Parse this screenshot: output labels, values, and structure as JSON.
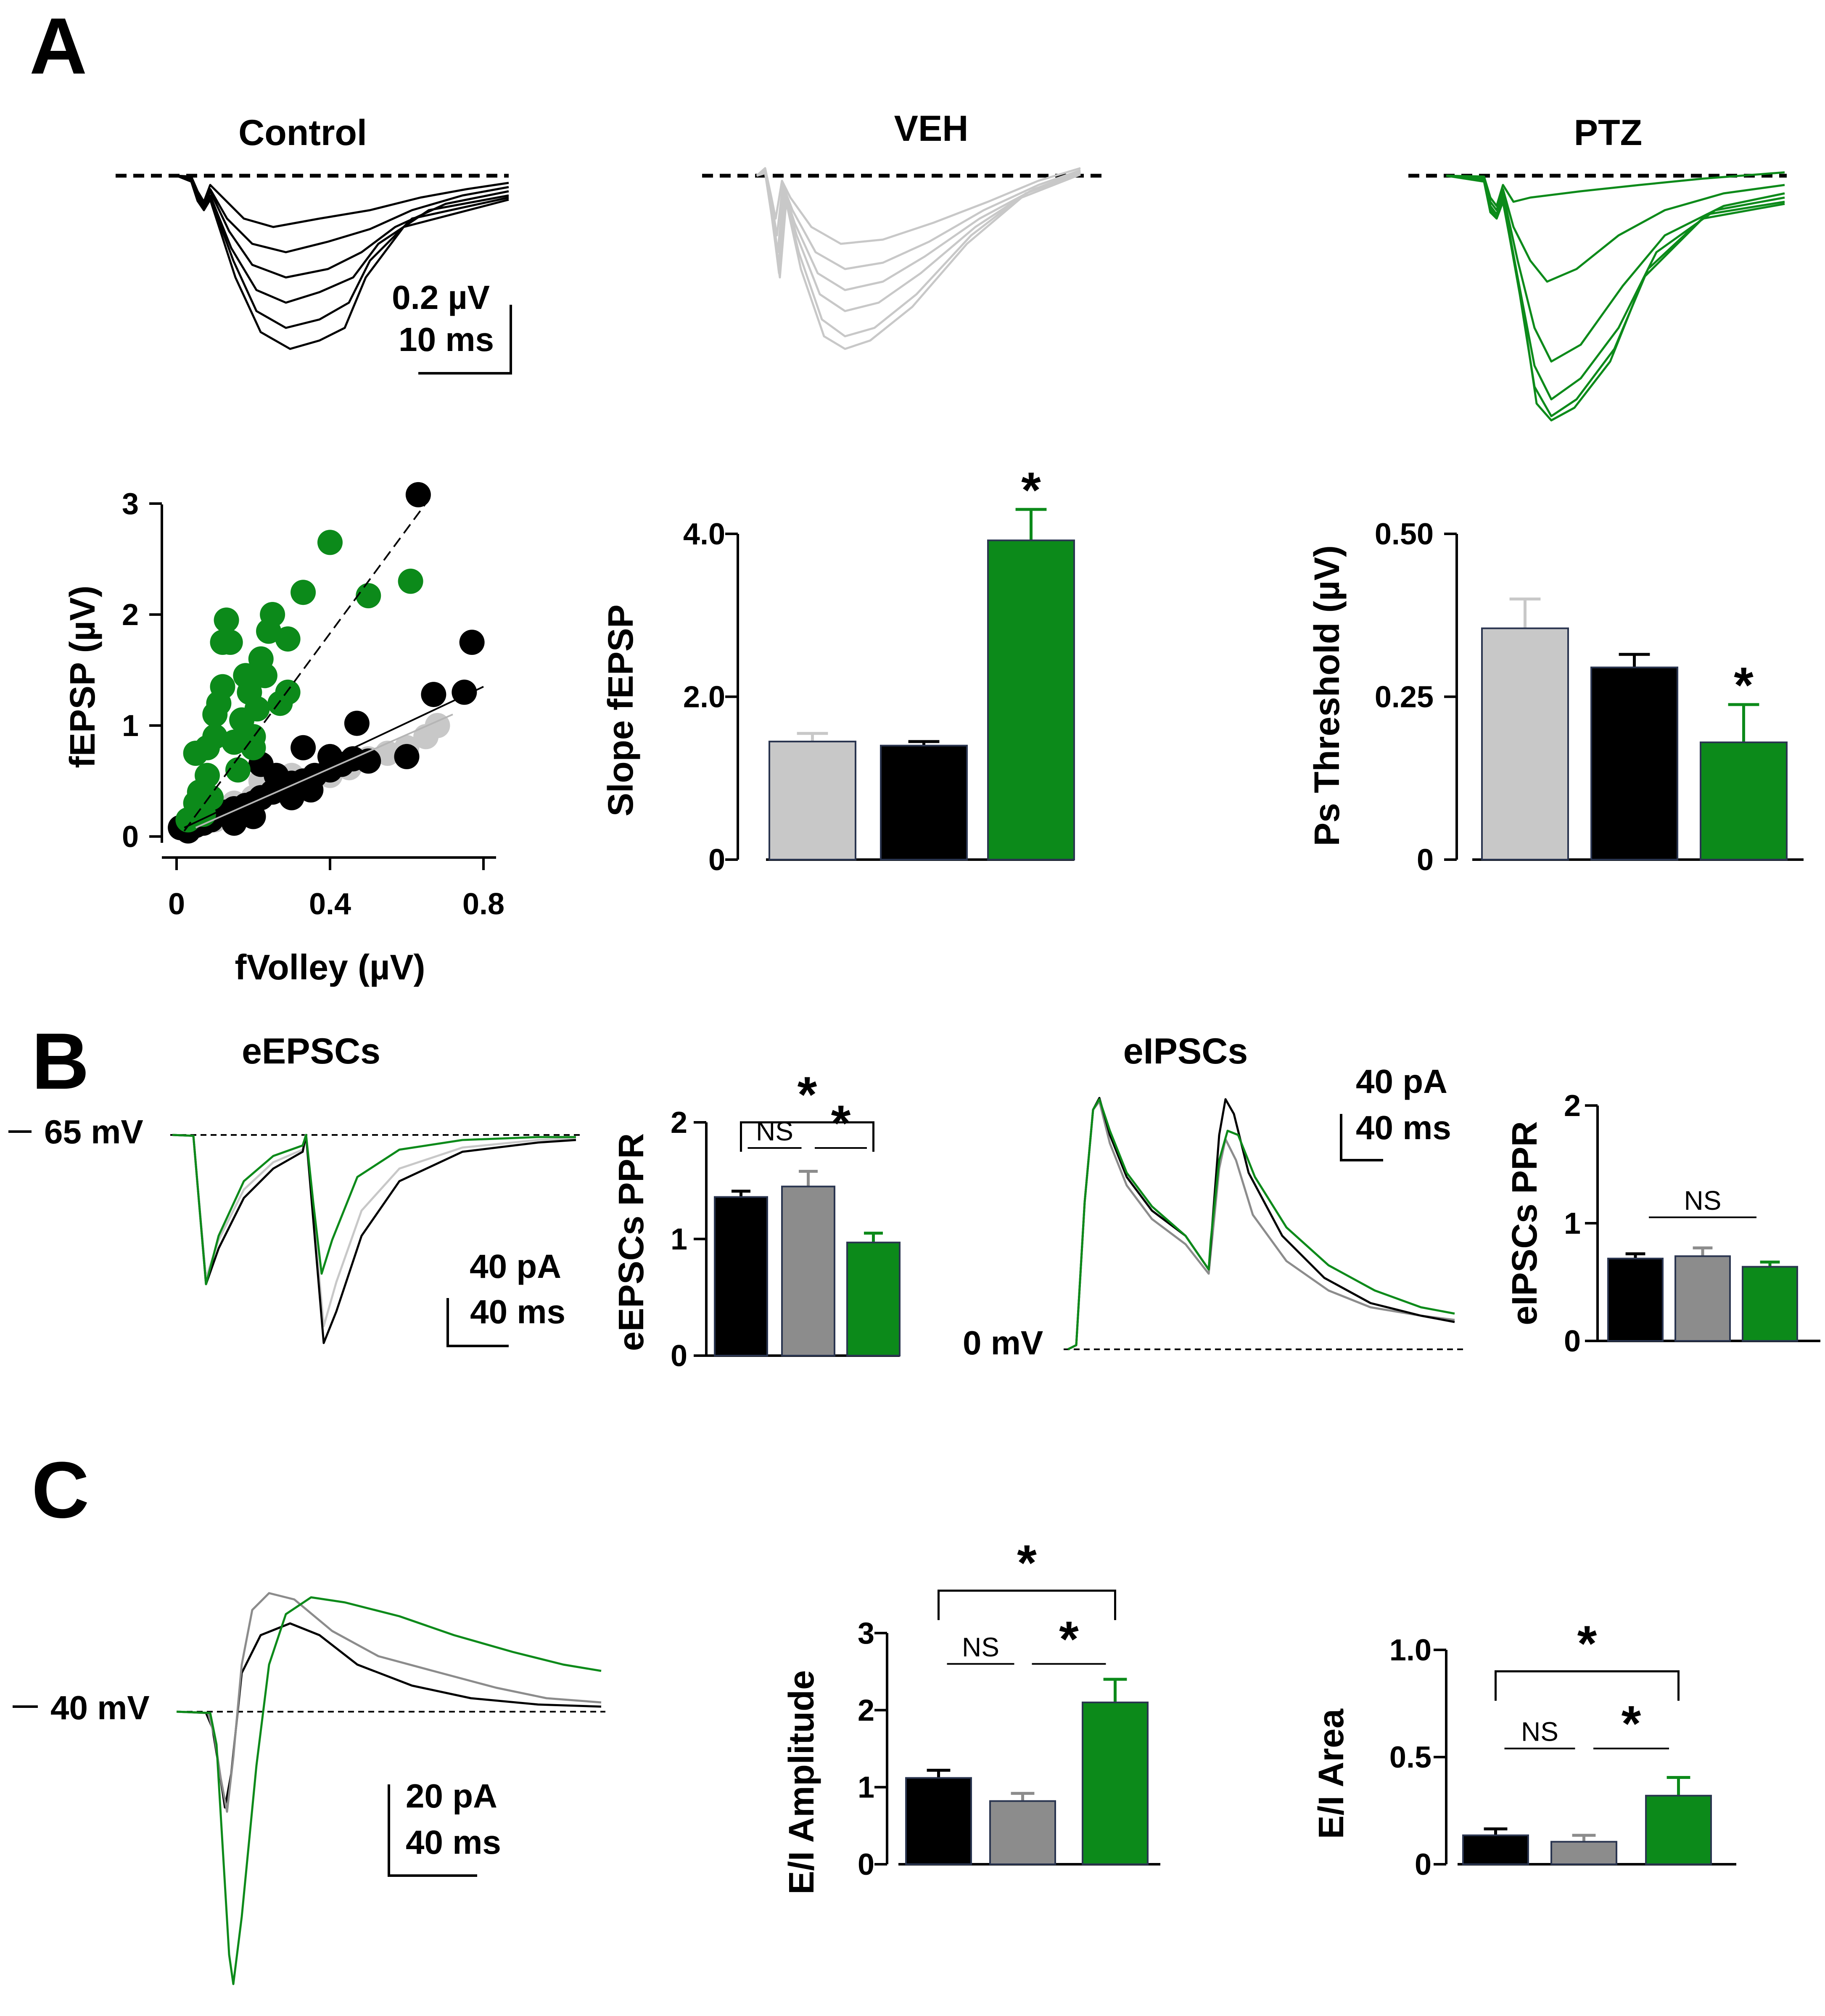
{
  "colors": {
    "control": "#000000",
    "veh": "#c8c8c8",
    "veh_dark": "#8c8c8c",
    "ptz": "#0c8a1a"
  },
  "panels": {
    "a": "A",
    "b": "B",
    "c": "C"
  },
  "traces_a": {
    "control_title": "Control",
    "veh_title": "VEH",
    "ptz_title": "PTZ",
    "scale_y": "0.2 µV",
    "scale_x": "10 ms"
  },
  "traces_b": {
    "eepsc_title": "eEPSCs",
    "eipsc_title": "eIPSCs",
    "hold_exc": "65 mV",
    "hold_inh": "0 mV",
    "exc_scale_y": "40 pA",
    "exc_scale_x": "40 ms",
    "inh_scale_y": "40 pA",
    "inh_scale_x": "40 ms"
  },
  "traces_c": {
    "hold": "40 mV",
    "scale_y": "20 pA",
    "scale_x": "40 ms"
  },
  "chart_data": [
    {
      "id": "io_scatter",
      "type": "scatter",
      "xlabel": "fVolley (µV)",
      "ylabel": "fEPSP (µV)",
      "xlim": [
        0,
        0.8
      ],
      "ylim": [
        0,
        3
      ],
      "xticks": [
        "0",
        "0.4",
        "0.8"
      ],
      "yticks": [
        "0",
        "1",
        "2",
        "3"
      ],
      "series": [
        {
          "name": "VEH",
          "color": "#c8c8c8",
          "points": [
            [
              0.04,
              0.1
            ],
            [
              0.08,
              0.2
            ],
            [
              0.12,
              0.22
            ],
            [
              0.15,
              0.3
            ],
            [
              0.2,
              0.35
            ],
            [
              0.24,
              0.4
            ],
            [
              0.28,
              0.45
            ],
            [
              0.3,
              0.55
            ],
            [
              0.35,
              0.5
            ],
            [
              0.4,
              0.55
            ],
            [
              0.45,
              0.62
            ],
            [
              0.5,
              0.7
            ],
            [
              0.55,
              0.75
            ],
            [
              0.6,
              0.8
            ],
            [
              0.65,
              0.9
            ],
            [
              0.68,
              1.0
            ],
            [
              0.22,
              0.5
            ],
            [
              0.18,
              0.28
            ],
            [
              0.32,
              0.42
            ],
            [
              0.1,
              0.15
            ]
          ]
        },
        {
          "name": "Control",
          "color": "#000000",
          "points": [
            [
              0.01,
              0.08
            ],
            [
              0.03,
              0.05
            ],
            [
              0.05,
              0.1
            ],
            [
              0.07,
              0.12
            ],
            [
              0.09,
              0.15
            ],
            [
              0.11,
              0.2
            ],
            [
              0.13,
              0.22
            ],
            [
              0.15,
              0.25
            ],
            [
              0.18,
              0.28
            ],
            [
              0.2,
              0.3
            ],
            [
              0.22,
              0.35
            ],
            [
              0.25,
              0.4
            ],
            [
              0.27,
              0.42
            ],
            [
              0.3,
              0.48
            ],
            [
              0.33,
              0.5
            ],
            [
              0.36,
              0.55
            ],
            [
              0.4,
              0.6
            ],
            [
              0.43,
              0.65
            ],
            [
              0.46,
              0.7
            ],
            [
              0.5,
              0.68
            ],
            [
              0.22,
              0.65
            ],
            [
              0.26,
              0.55
            ],
            [
              0.33,
              0.8
            ],
            [
              0.47,
              1.02
            ],
            [
              0.6,
              0.72
            ],
            [
              0.67,
              1.28
            ],
            [
              0.75,
              1.3
            ],
            [
              0.77,
              1.75
            ],
            [
              0.63,
              3.08
            ],
            [
              0.4,
              0.72
            ],
            [
              0.3,
              0.35
            ],
            [
              0.2,
              0.18
            ],
            [
              0.35,
              0.42
            ],
            [
              0.15,
              0.12
            ]
          ]
        },
        {
          "name": "PTZ",
          "color": "#0c8a1a",
          "points": [
            [
              0.03,
              0.15
            ],
            [
              0.05,
              0.3
            ],
            [
              0.05,
              0.75
            ],
            [
              0.06,
              0.4
            ],
            [
              0.08,
              0.55
            ],
            [
              0.08,
              0.8
            ],
            [
              0.09,
              0.35
            ],
            [
              0.1,
              1.1
            ],
            [
              0.1,
              0.9
            ],
            [
              0.11,
              1.2
            ],
            [
              0.12,
              1.35
            ],
            [
              0.12,
              1.75
            ],
            [
              0.13,
              1.95
            ],
            [
              0.14,
              1.75
            ],
            [
              0.15,
              0.85
            ],
            [
              0.16,
              0.6
            ],
            [
              0.17,
              1.05
            ],
            [
              0.18,
              1.45
            ],
            [
              0.19,
              1.3
            ],
            [
              0.2,
              0.9
            ],
            [
              0.21,
              1.15
            ],
            [
              0.22,
              1.6
            ],
            [
              0.23,
              1.45
            ],
            [
              0.24,
              1.85
            ],
            [
              0.25,
              2.0
            ],
            [
              0.27,
              1.2
            ],
            [
              0.29,
              1.3
            ],
            [
              0.29,
              1.78
            ],
            [
              0.33,
              2.2
            ],
            [
              0.4,
              2.65
            ],
            [
              0.5,
              2.17
            ],
            [
              0.61,
              2.3
            ],
            [
              0.2,
              0.8
            ],
            [
              0.07,
              0.2
            ]
          ]
        }
      ],
      "fits": [
        {
          "name": "PTZ fit",
          "color": "#000000",
          "style": "dashed",
          "x": [
            0.02,
            0.66
          ],
          "y": [
            0.05,
            3.05
          ]
        },
        {
          "name": "Control fit",
          "color": "#000000",
          "style": "solid",
          "x": [
            0.02,
            0.8
          ],
          "y": [
            0.08,
            1.35
          ]
        },
        {
          "name": "VEH fit",
          "color": "#b5b5b5",
          "style": "solid",
          "x": [
            0.05,
            0.72
          ],
          "y": [
            0.08,
            1.1
          ]
        }
      ]
    },
    {
      "id": "slope_bar",
      "type": "bar",
      "ylabel": "Slope fEPSP",
      "ylim": [
        0,
        4.0
      ],
      "yticks": [
        "0",
        "2.0",
        "4.0"
      ],
      "categories": [
        "VEH",
        "Control",
        "PTZ"
      ],
      "values": [
        1.45,
        1.4,
        3.92
      ],
      "errors": [
        0.1,
        0.05,
        0.38
      ],
      "colors": [
        "#c8c8c8",
        "#000000",
        "#0c8a1a"
      ],
      "significance": [
        {
          "bar": 2,
          "label": "*"
        }
      ]
    },
    {
      "id": "ps_bar",
      "type": "bar",
      "ylabel": "Ps Threshold (µV)",
      "ylim": [
        0,
        0.5
      ],
      "yticks": [
        "0",
        "0.25",
        "0.50"
      ],
      "categories": [
        "VEH",
        "Control",
        "PTZ"
      ],
      "values": [
        0.355,
        0.295,
        0.18
      ],
      "errors": [
        0.045,
        0.02,
        0.058
      ],
      "colors": [
        "#c8c8c8",
        "#000000",
        "#0c8a1a"
      ],
      "significance": [
        {
          "bar": 2,
          "label": "*"
        }
      ]
    },
    {
      "id": "eepsc_ppr",
      "type": "bar",
      "ylabel": "eEPSCs PPR",
      "ylim": [
        0,
        2
      ],
      "yticks": [
        "0",
        "1",
        "2"
      ],
      "categories": [
        "Control",
        "VEH",
        "PTZ"
      ],
      "values": [
        1.36,
        1.45,
        0.97
      ],
      "errors": [
        0.05,
        0.13,
        0.08
      ],
      "colors": [
        "#000000",
        "#8c8c8c",
        "#0c8a1a"
      ],
      "brackets": [
        {
          "from": 0,
          "to": 2,
          "label": "*",
          "level": 2.0,
          "type": "bracket"
        },
        {
          "from": 0,
          "to": 1,
          "label": "NS",
          "level": 1.78,
          "type": "line"
        },
        {
          "from": 1,
          "to": 2,
          "label": "*",
          "level": 1.78,
          "type": "line"
        }
      ]
    },
    {
      "id": "eipsc_ppr",
      "type": "bar",
      "ylabel": "eIPSCs PPR",
      "ylim": [
        0,
        2
      ],
      "yticks": [
        "0",
        "1",
        "2"
      ],
      "categories": [
        "Control",
        "VEH",
        "PTZ"
      ],
      "values": [
        0.7,
        0.72,
        0.63
      ],
      "errors": [
        0.04,
        0.07,
        0.04
      ],
      "colors": [
        "#000000",
        "#8c8c8c",
        "#0c8a1a"
      ],
      "brackets": [
        {
          "from": 0,
          "to": 2,
          "label": "NS",
          "level": 1.05,
          "type": "line"
        }
      ]
    },
    {
      "id": "ei_amp",
      "type": "bar",
      "ylabel": "E/I Amplitude",
      "ylim": [
        0,
        3
      ],
      "yticks": [
        "0",
        "1",
        "2",
        "3"
      ],
      "categories": [
        "Control",
        "VEH",
        "PTZ"
      ],
      "values": [
        1.12,
        0.82,
        2.1
      ],
      "errors": [
        0.1,
        0.1,
        0.3
      ],
      "colors": [
        "#000000",
        "#8c8c8c",
        "#0c8a1a"
      ],
      "brackets": [
        {
          "from": 0,
          "to": 2,
          "label": "*",
          "level": 3.55,
          "type": "bracket"
        },
        {
          "from": 0,
          "to": 1,
          "label": "NS",
          "level": 2.6,
          "type": "line"
        },
        {
          "from": 1,
          "to": 2,
          "label": "*",
          "level": 2.6,
          "type": "line"
        }
      ]
    },
    {
      "id": "ei_area",
      "type": "bar",
      "ylabel": "E/I Area",
      "ylim": [
        0,
        1.0
      ],
      "yticks": [
        "0",
        "0.5",
        "1.0"
      ],
      "categories": [
        "Control",
        "VEH",
        "PTZ"
      ],
      "values": [
        0.135,
        0.105,
        0.32
      ],
      "errors": [
        0.03,
        0.03,
        0.085
      ],
      "colors": [
        "#000000",
        "#8c8c8c",
        "#0c8a1a"
      ],
      "brackets": [
        {
          "from": 0,
          "to": 2,
          "label": "*",
          "level": 0.9,
          "type": "bracket"
        },
        {
          "from": 0,
          "to": 1,
          "label": "NS",
          "level": 0.54,
          "type": "line"
        },
        {
          "from": 1,
          "to": 2,
          "label": "*",
          "level": 0.54,
          "type": "line"
        }
      ]
    }
  ]
}
